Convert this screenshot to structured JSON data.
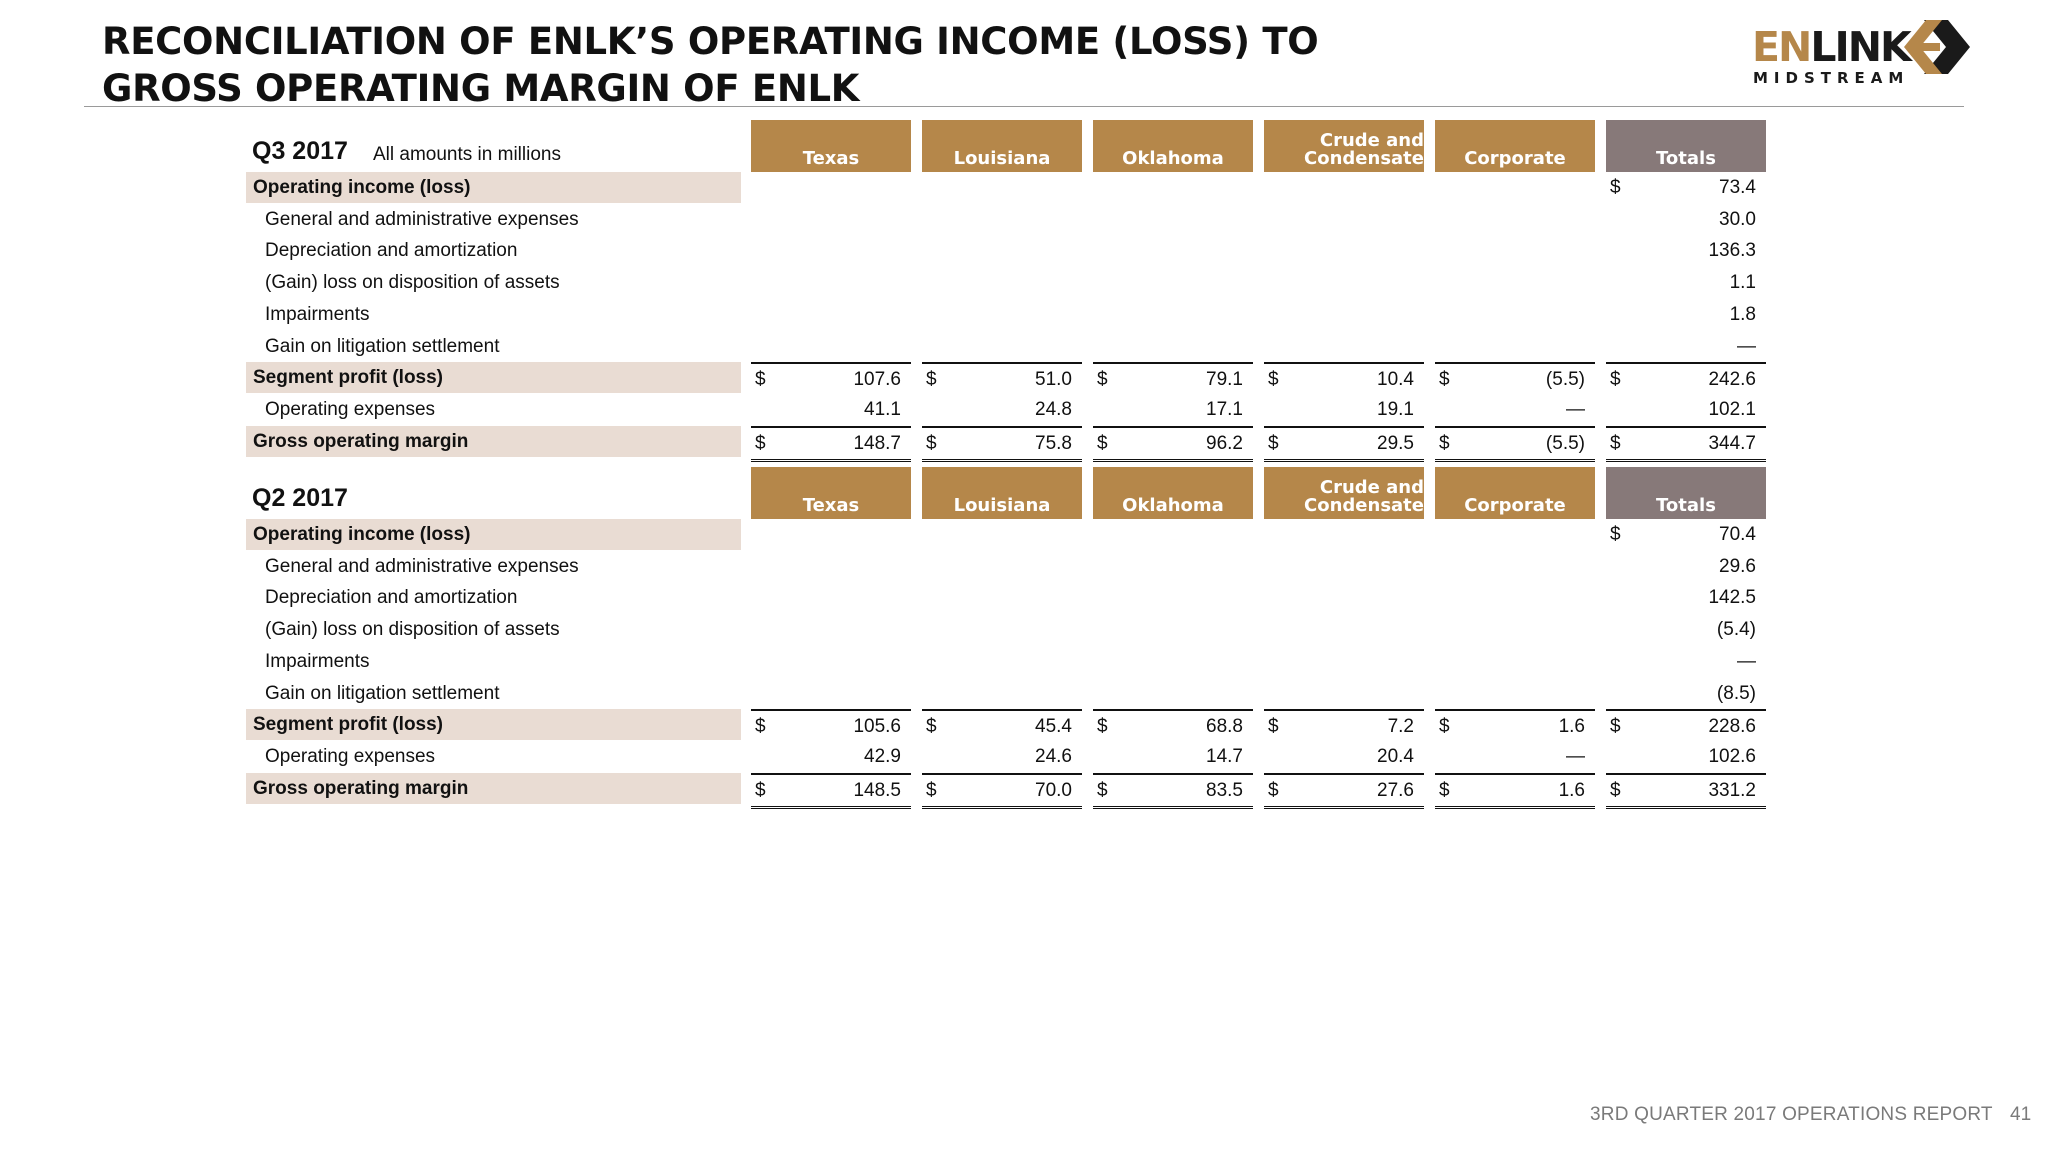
{
  "title_lines": [
    "RECONCILIATION OF ENLK’S OPERATING INCOME (LOSS) TO",
    "GROSS OPERATING MARGIN OF ENLK"
  ],
  "logo": {
    "en": "EN",
    "link": "LINK",
    "sub": "MIDSTREAM"
  },
  "colors": {
    "segment_header": "#b5874a",
    "totals_header": "#877979",
    "row_highlight": "#e9dcd3"
  },
  "columns": [
    {
      "label": "Texas"
    },
    {
      "label": "Louisiana"
    },
    {
      "label": "Oklahoma"
    },
    {
      "label_line1": "Crude and",
      "label_line2": "Condensate"
    },
    {
      "label": "Corporate"
    },
    {
      "label": "Totals"
    }
  ],
  "q3": {
    "period": "Q3 2017",
    "note": "All amounts in millions",
    "operating_income": {
      "label": "Operating income (loss)",
      "currency": "$",
      "total": "73.4"
    },
    "adjustments": [
      {
        "label": "General and administrative expenses",
        "total": "30.0"
      },
      {
        "label": "Depreciation and amortization",
        "total": "136.3"
      },
      {
        "label": "(Gain) loss on disposition of assets",
        "total": "1.1"
      },
      {
        "label": "Impairments",
        "total": "1.8"
      },
      {
        "label": "Gain on litigation settlement",
        "total": "—"
      }
    ],
    "segment_profit": {
      "label": "Segment profit (loss)",
      "currency": "$",
      "values": [
        "107.6",
        "51.0",
        "79.1",
        "10.4",
        "(5.5)",
        "242.6"
      ]
    },
    "operating_expenses": {
      "label": "Operating expenses",
      "values": [
        "41.1",
        "24.8",
        "17.1",
        "19.1",
        "—",
        "102.1"
      ]
    },
    "gross_operating_margin": {
      "label": "Gross operating margin",
      "currency": "$",
      "values": [
        "148.7",
        "75.8",
        "96.2",
        "29.5",
        "(5.5)",
        "344.7"
      ]
    }
  },
  "q2": {
    "period": "Q2 2017",
    "operating_income": {
      "label": "Operating income (loss)",
      "currency": "$",
      "total": "70.4"
    },
    "adjustments": [
      {
        "label": "General and administrative expenses",
        "total": "29.6"
      },
      {
        "label": "Depreciation and amortization",
        "total": "142.5"
      },
      {
        "label": "(Gain) loss on disposition of assets",
        "total": "(5.4)"
      },
      {
        "label": "Impairments",
        "total": "—"
      },
      {
        "label": "Gain on litigation settlement",
        "total": "(8.5)"
      }
    ],
    "segment_profit": {
      "label": "Segment profit (loss)",
      "currency": "$",
      "values": [
        "105.6",
        "45.4",
        "68.8",
        "7.2",
        "1.6",
        "228.6"
      ]
    },
    "operating_expenses": {
      "label": "Operating expenses",
      "values": [
        "42.9",
        "24.6",
        "14.7",
        "20.4",
        "—",
        "102.6"
      ]
    },
    "gross_operating_margin": {
      "label": "Gross operating margin",
      "currency": "$",
      "values": [
        "148.5",
        "70.0",
        "83.5",
        "27.6",
        "1.6",
        "331.2"
      ]
    }
  },
  "footer": {
    "report": "3RD QUARTER 2017 OPERATIONS REPORT",
    "page": "41"
  }
}
